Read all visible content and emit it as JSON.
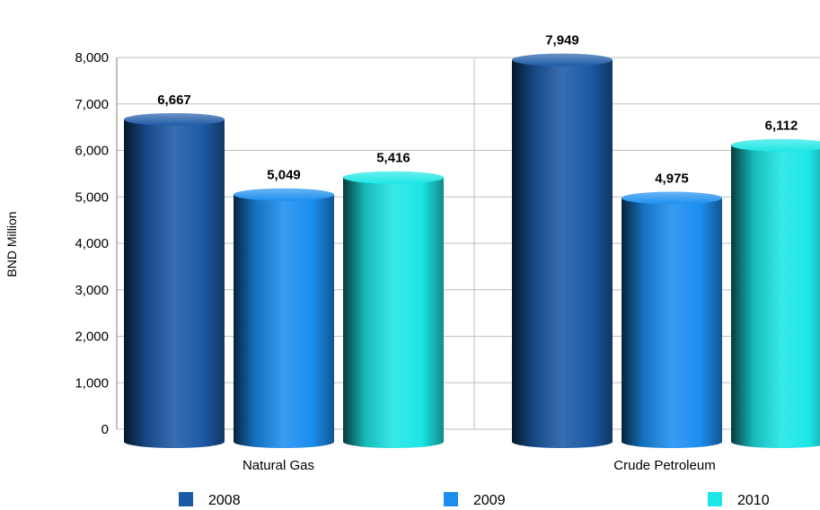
{
  "chart_data": {
    "type": "bar",
    "title": "",
    "xlabel": "",
    "ylabel": "BND Million",
    "categories": [
      "Natural Gas",
      "Crude Petroleum"
    ],
    "series": [
      {
        "name": "2008",
        "values": [
          6667,
          7949
        ],
        "labels": [
          "6,667",
          "7,949"
        ],
        "color": "#1d5aa6"
      },
      {
        "name": "2009",
        "values": [
          5049,
          4975
        ],
        "labels": [
          "5,049",
          "4,975"
        ],
        "color": "#1c8ef0"
      },
      {
        "name": "2010",
        "values": [
          5416,
          6112
        ],
        "labels": [
          "5,416",
          "6,112"
        ],
        "color": "#1de6e6"
      }
    ],
    "ylim": [
      0,
      8000
    ],
    "yticks": [
      {
        "value": 0,
        "label": "0"
      },
      {
        "value": 1000,
        "label": "1,000"
      },
      {
        "value": 2000,
        "label": "2,000"
      },
      {
        "value": 3000,
        "label": "3,000"
      },
      {
        "value": 4000,
        "label": "4,000"
      },
      {
        "value": 5000,
        "label": "5,000"
      },
      {
        "value": 6000,
        "label": "6,000"
      },
      {
        "value": 7000,
        "label": "7,000"
      },
      {
        "value": 8000,
        "label": "8,000"
      }
    ],
    "grid": true,
    "legend": "bottom"
  }
}
